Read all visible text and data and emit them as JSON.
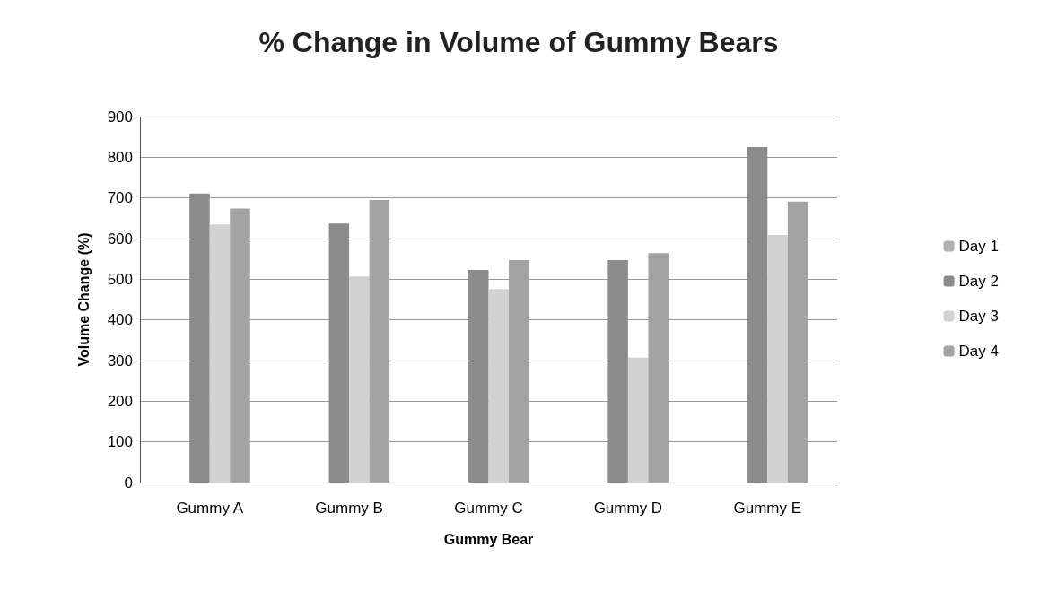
{
  "chart_data": {
    "type": "bar",
    "title": "% Change in Volume of Gummy Bears",
    "xlabel": "Gummy Bear",
    "ylabel": "Volume Change (%)",
    "categories": [
      "Gummy A",
      "Gummy B",
      "Gummy C",
      "Gummy D",
      "Gummy E"
    ],
    "series": [
      {
        "name": "Day 1",
        "color": "#b0b0b0",
        "values": [
          0,
          0,
          0,
          0,
          0
        ]
      },
      {
        "name": "Day 2",
        "color": "#8c8c8c",
        "values": [
          711,
          637,
          523,
          547,
          825
        ]
      },
      {
        "name": "Day 3",
        "color": "#d2d2d2",
        "values": [
          635,
          507,
          476,
          307,
          609
        ]
      },
      {
        "name": "Day 4",
        "color": "#a3a3a3",
        "values": [
          674,
          695,
          547,
          564,
          691
        ]
      }
    ],
    "ylim": [
      0,
      900
    ],
    "yticks": [
      0,
      100,
      200,
      300,
      400,
      500,
      600,
      700,
      800,
      900
    ],
    "grid": "y",
    "legend": "right"
  }
}
